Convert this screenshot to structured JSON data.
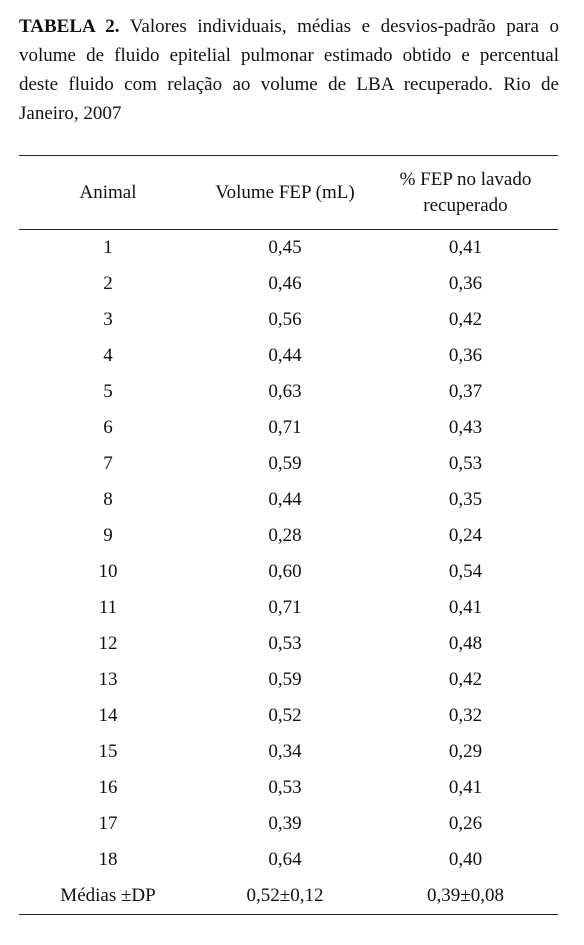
{
  "caption": {
    "label": "TABELA 2.",
    "text": "Valores individuais, médias e desvios-padrão para o volume de fluido epitelial pulmonar estimado obtido e percentual deste fluido com relação ao volume de LBA recuperado. Rio de Janeiro, 2007"
  },
  "table": {
    "header": [
      "Animal",
      "Volume FEP (mL)",
      "% FEP no lavado recuperado"
    ],
    "rows": [
      [
        "1",
        "0,45",
        "0,41"
      ],
      [
        "2",
        "0,46",
        "0,36"
      ],
      [
        "3",
        "0,56",
        "0,42"
      ],
      [
        "4",
        "0,44",
        "0,36"
      ],
      [
        "5",
        "0,63",
        "0,37"
      ],
      [
        "6",
        "0,71",
        "0,43"
      ],
      [
        "7",
        "0,59",
        "0,53"
      ],
      [
        "8",
        "0,44",
        "0,35"
      ],
      [
        "9",
        "0,28",
        "0,24"
      ],
      [
        "10",
        "0,60",
        "0,54"
      ],
      [
        "11",
        "0,71",
        "0,41"
      ],
      [
        "12",
        "0,53",
        "0,48"
      ],
      [
        "13",
        "0,59",
        "0,42"
      ],
      [
        "14",
        "0,52",
        "0,32"
      ],
      [
        "15",
        "0,34",
        "0,29"
      ],
      [
        "16",
        "0,53",
        "0,41"
      ],
      [
        "17",
        "0,39",
        "0,26"
      ],
      [
        "18",
        "0,64",
        "0,40"
      ]
    ],
    "footer": [
      "Médias ±DP",
      "0,52±0,12",
      "0,39±0,08"
    ]
  }
}
